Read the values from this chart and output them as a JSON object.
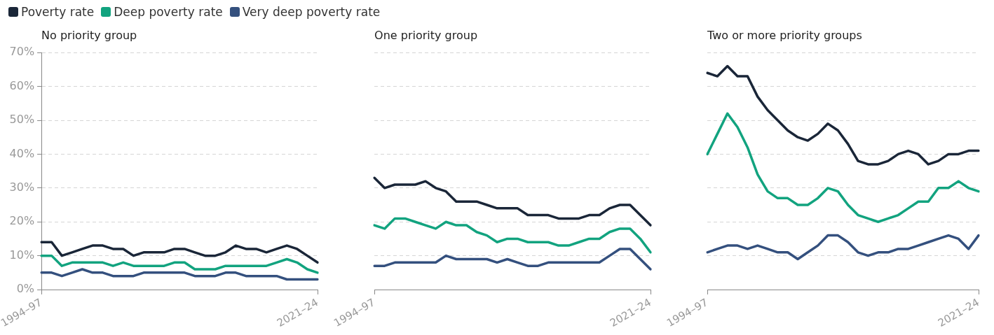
{
  "chart_data": [
    {
      "type": "line",
      "title": "No priority group",
      "legend": "top",
      "grid": "y",
      "marker": "none",
      "line_style": "solid",
      "categories": [
        "1994–97",
        null,
        null,
        null,
        null,
        null,
        null,
        null,
        null,
        null,
        null,
        null,
        null,
        null,
        null,
        null,
        null,
        null,
        null,
        null,
        null,
        null,
        null,
        null,
        null,
        null,
        null,
        "2021–24"
      ],
      "ylim": [
        0,
        70
      ],
      "yticks": [
        {
          "value": 0,
          "label": "0%"
        },
        {
          "value": 10,
          "label": "10%"
        },
        {
          "value": 20,
          "label": "20%"
        },
        {
          "value": 30,
          "label": "30%"
        },
        {
          "value": 40,
          "label": "40%"
        },
        {
          "value": 50,
          "label": "50%"
        },
        {
          "value": 60,
          "label": "60%"
        },
        {
          "value": 70,
          "label": "70%"
        }
      ],
      "series": [
        {
          "name": "Poverty rate",
          "color": "#1a2638",
          "values": [
            14,
            14,
            10,
            11,
            12,
            13,
            13,
            12,
            12,
            10,
            11,
            11,
            11,
            12,
            12,
            11,
            10,
            10,
            11,
            13,
            12,
            12,
            11,
            12,
            13,
            12,
            10,
            8
          ]
        },
        {
          "name": "Deep poverty rate",
          "color": "#12a37f",
          "values": [
            10,
            10,
            7,
            8,
            8,
            8,
            8,
            7,
            8,
            7,
            7,
            7,
            7,
            8,
            8,
            6,
            6,
            6,
            7,
            7,
            7,
            7,
            7,
            8,
            9,
            8,
            6,
            5
          ]
        },
        {
          "name": "Very deep poverty rate",
          "color": "#34507e",
          "values": [
            5,
            5,
            4,
            5,
            6,
            5,
            5,
            4,
            4,
            4,
            5,
            5,
            5,
            5,
            5,
            4,
            4,
            4,
            5,
            5,
            4,
            4,
            4,
            4,
            3,
            3,
            3,
            3
          ]
        }
      ]
    },
    {
      "type": "line",
      "title": "One priority group",
      "grid": "y",
      "marker": "none",
      "line_style": "solid",
      "tick_labels": "x",
      "categories": [
        "1994–97",
        null,
        null,
        null,
        null,
        null,
        null,
        null,
        null,
        null,
        null,
        null,
        null,
        null,
        null,
        null,
        null,
        null,
        null,
        null,
        null,
        null,
        null,
        null,
        null,
        null,
        null,
        "2021–24"
      ],
      "ylim": [
        0,
        70
      ],
      "yticks": [
        0,
        10,
        20,
        30,
        40,
        50,
        60,
        70
      ],
      "series": [
        {
          "color": "#1a2638",
          "values": [
            33,
            30,
            31,
            31,
            31,
            32,
            30,
            29,
            26,
            26,
            26,
            25,
            24,
            24,
            24,
            22,
            22,
            22,
            21,
            21,
            21,
            22,
            22,
            24,
            25,
            25,
            22,
            19
          ]
        },
        {
          "color": "#12a37f",
          "values": [
            19,
            18,
            21,
            21,
            20,
            19,
            18,
            20,
            19,
            19,
            17,
            16,
            14,
            15,
            15,
            14,
            14,
            14,
            13,
            13,
            14,
            15,
            15,
            17,
            18,
            18,
            15,
            11
          ]
        },
        {
          "color": "#34507e",
          "values": [
            7,
            7,
            8,
            8,
            8,
            8,
            8,
            10,
            9,
            9,
            9,
            9,
            8,
            9,
            8,
            7,
            7,
            8,
            8,
            8,
            8,
            8,
            8,
            10,
            12,
            12,
            9,
            6
          ]
        }
      ]
    },
    {
      "type": "line",
      "title": "Two or more priority groups",
      "grid": "y",
      "marker": "none",
      "line_style": "solid",
      "tick_labels": "x",
      "categories": [
        "1994–97",
        null,
        null,
        null,
        null,
        null,
        null,
        null,
        null,
        null,
        null,
        null,
        null,
        null,
        null,
        null,
        null,
        null,
        null,
        null,
        null,
        null,
        null,
        null,
        null,
        null,
        null,
        "2021–24"
      ],
      "ylim": [
        0,
        70
      ],
      "yticks": [
        0,
        10,
        20,
        30,
        40,
        50,
        60,
        70
      ],
      "series": [
        {
          "color": "#1a2638",
          "values": [
            64,
            63,
            66,
            63,
            63,
            57,
            53,
            50,
            47,
            45,
            44,
            46,
            49,
            47,
            43,
            38,
            37,
            37,
            38,
            40,
            41,
            40,
            37,
            38,
            40,
            40,
            41,
            41
          ]
        },
        {
          "color": "#12a37f",
          "values": [
            40,
            46,
            52,
            48,
            42,
            34,
            29,
            27,
            27,
            25,
            25,
            27,
            30,
            29,
            25,
            22,
            21,
            20,
            21,
            22,
            24,
            26,
            26,
            30,
            30,
            32,
            30,
            29
          ]
        },
        {
          "color": "#34507e",
          "values": [
            11,
            12,
            13,
            13,
            12,
            13,
            12,
            11,
            11,
            9,
            11,
            13,
            16,
            16,
            14,
            11,
            10,
            11,
            11,
            12,
            12,
            13,
            14,
            15,
            16,
            15,
            12,
            16
          ]
        }
      ]
    }
  ]
}
